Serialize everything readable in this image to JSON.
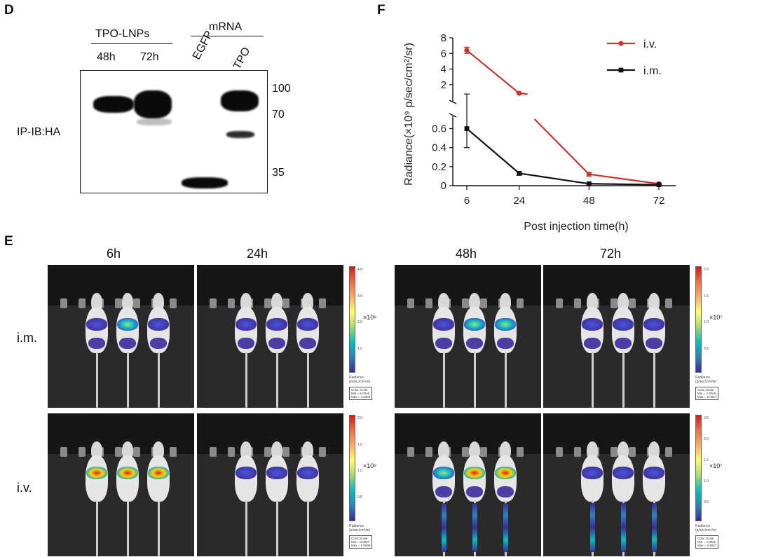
{
  "panels": {
    "d": {
      "letter": "D",
      "group1": "TPO-LNPs",
      "group2": "mRNA",
      "lanes": [
        "48h",
        "72h",
        "EGFP",
        "TPO"
      ],
      "ylabel": "IP-IB:HA",
      "markers": [
        "100",
        "70",
        "35"
      ]
    },
    "e": {
      "letter": "E",
      "times": [
        "6h",
        "24h",
        "48h",
        "72h"
      ],
      "routes": [
        "i.m.",
        "i.v."
      ],
      "colorbars": [
        {
          "ticks": [
            "4.0",
            "3.0",
            "2.0",
            "1.0"
          ],
          "unit": "×10⁸",
          "radiance": "Radiance",
          "radiance_unit": "(p/sec/cm²/sr)",
          "box": [
            "Color Scale",
            "Min = 5.00e6",
            "Max = 4.00e8"
          ]
        },
        {
          "ticks": [
            "2.0",
            "1.5",
            "1.0",
            "0.5"
          ],
          "unit": "×10⁷",
          "radiance": "Radiance",
          "radiance_unit": "(p/sec/cm²/sr)",
          "box": [
            "Color Scale",
            "Min = 2.00e5",
            "Max = 2.00e7"
          ]
        },
        {
          "ticks": [
            "2.0",
            "1.5",
            "1.0",
            "0.5"
          ],
          "unit": "×10⁹",
          "radiance": "Radiance",
          "radiance_unit": "(p/sec/cm²/sr)",
          "box": [
            "Color Scale",
            "Min = 5.00e7",
            "Max = 2.00e9"
          ]
        },
        {
          "ticks": [
            "2.5",
            "2.0",
            "1.5",
            "1.0",
            "0.5"
          ],
          "unit": "×10⁷",
          "radiance": "Radiance",
          "radiance_unit": "(p/sec/cm²/sr)",
          "box": [
            "Color Scale",
            "Min = 7.00e5",
            "Max = 2.50e7"
          ]
        }
      ]
    },
    "f": {
      "letter": "F"
    }
  },
  "chart_data": {
    "type": "line",
    "xlabel": "Post injection time(h)",
    "ylabel": "Radiance(×10⁹ p/sec/cm²/sr)",
    "x": [
      6,
      24,
      48,
      72
    ],
    "x_ticks": [
      "6",
      "24",
      "48",
      "72"
    ],
    "y_ticks_lower": [
      "0",
      "0.2",
      "0.4",
      "0.6"
    ],
    "y_ticks_upper": [
      "2",
      "4",
      "6",
      "8"
    ],
    "y_break": {
      "lower_range": [
        0,
        0.7
      ],
      "upper_range": [
        1,
        8
      ]
    },
    "legend_position": "top-right",
    "series": [
      {
        "name": "i.v.",
        "color": "#c8332f",
        "values": [
          6.4,
          0.9,
          0.12,
          0.02
        ],
        "errors": [
          0.4,
          0.05,
          0.02,
          0.005
        ]
      },
      {
        "name": "i.m.",
        "color": "#111111",
        "values": [
          0.6,
          0.13,
          0.02,
          0.01
        ],
        "errors": [
          0.2,
          0.02,
          0.005,
          0.003
        ]
      }
    ],
    "grid": false
  }
}
